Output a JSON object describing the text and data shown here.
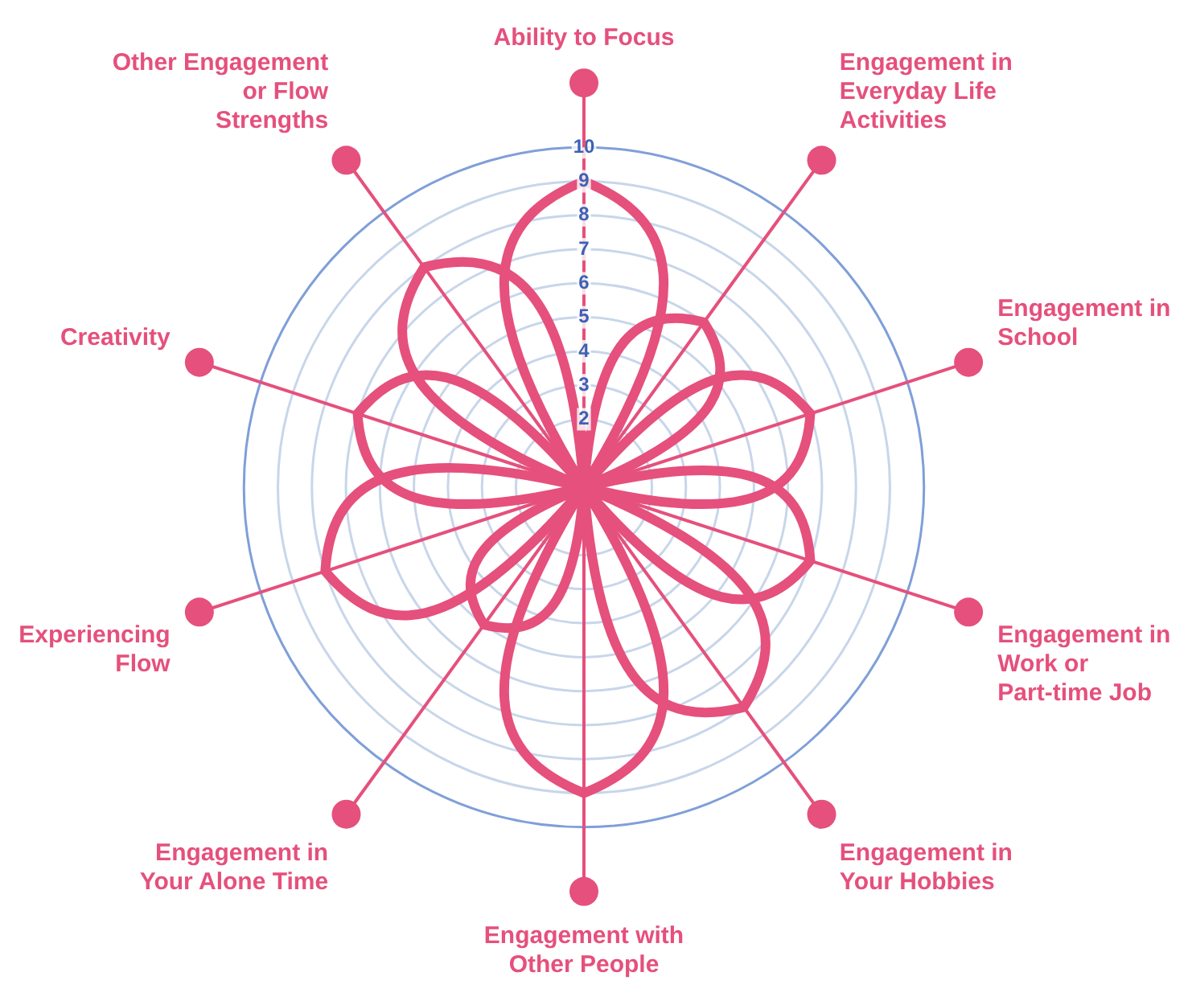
{
  "chart_data": {
    "type": "radar",
    "categories": [
      "Ability to Focus",
      "Engagement in Everyday Life Activities",
      "Engagement in School",
      "Engagement in Work or Part-time Job",
      "Engagement in Your Hobbies",
      "Engagement with Other People",
      "Engagement in Your Alone Time",
      "Experiencing Flow",
      "Creativity",
      "Other Engagement or Flow Strengths"
    ],
    "series": [
      {
        "color": "#e5507c",
        "values": [
          9,
          6,
          7,
          7,
          8,
          9,
          5,
          8,
          7,
          8
        ]
      }
    ],
    "ylim": [
      0,
      10
    ],
    "yticks": [
      2,
      3,
      4,
      5,
      6,
      7,
      8,
      9,
      10
    ],
    "grid": true,
    "legend": false
  }
}
